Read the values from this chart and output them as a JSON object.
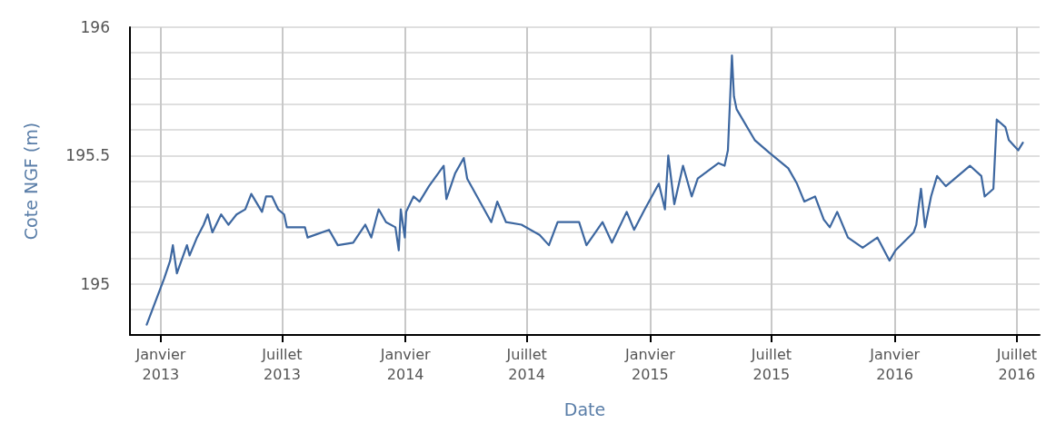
{
  "chart_data": {
    "type": "line",
    "xlabel": "Date",
    "ylabel": "Cote NGF (m)",
    "xlim": [
      "2012-11-16",
      "2016-08-04"
    ],
    "xticks": [
      {
        "value": "2013-01-01",
        "label": "Janvier\n2013"
      },
      {
        "value": "2013-07-01",
        "label": "Juillet\n2013"
      },
      {
        "value": "2014-01-01",
        "label": "Janvier\n2014"
      },
      {
        "value": "2014-07-01",
        "label": "Juillet\n2014"
      },
      {
        "value": "2015-01-01",
        "label": "Janvier\n2015"
      },
      {
        "value": "2015-07-01",
        "label": "Juillet\n2015"
      },
      {
        "value": "2016-01-01",
        "label": "Janvier\n2016"
      },
      {
        "value": "2016-07-01",
        "label": "Juillet\n2016"
      }
    ],
    "ylim": [
      194.8,
      196
    ],
    "yticks": [
      {
        "value": 194.8,
        "label": null
      },
      {
        "value": 194.9,
        "label": null
      },
      195,
      {
        "value": 195.1,
        "label": null
      },
      {
        "value": 195.2,
        "label": null
      },
      {
        "value": 195.3,
        "label": null
      },
      {
        "value": 195.4,
        "label": null
      },
      195.5,
      {
        "value": 195.6,
        "label": null
      },
      {
        "value": 195.7,
        "label": null
      },
      {
        "value": 195.8,
        "label": null
      },
      {
        "value": 195.9,
        "label": null
      },
      196
    ],
    "grid": true,
    "marker": "none",
    "line_style": "solid",
    "series": [
      {
        "color": "#3d67a0",
        "x": [
          "2012-12-11",
          "2013-01-06",
          "2013-01-15",
          "2013-01-19",
          "2013-01-25",
          "2013-02-09",
          "2013-02-13",
          "2013-02-24",
          "2013-03-06",
          "2013-03-12",
          "2013-03-19",
          "2013-04-01",
          "2013-04-12",
          "2013-04-24",
          "2013-05-07",
          "2013-05-16",
          "2013-06-01",
          "2013-06-07",
          "2013-06-16",
          "2013-06-25",
          "2013-07-04",
          "2013-07-08",
          "2013-08-04",
          "2013-08-08",
          "2013-09-09",
          "2013-09-22",
          "2013-10-15",
          "2013-11-02",
          "2013-11-11",
          "2013-11-22",
          "2013-12-03",
          "2013-12-17",
          "2013-12-22",
          "2013-12-25",
          "2013-12-31",
          "2014-01-02",
          "2014-01-13",
          "2014-01-22",
          "2014-02-05",
          "2014-02-27",
          "2014-03-03",
          "2014-03-16",
          "2014-03-29",
          "2014-04-03",
          "2014-05-09",
          "2014-05-18",
          "2014-05-31",
          "2014-06-23",
          "2014-07-20",
          "2014-08-03",
          "2014-08-16",
          "2014-09-17",
          "2014-09-28",
          "2014-10-22",
          "2014-11-05",
          "2014-11-27",
          "2014-12-08",
          "2014-12-24",
          "2015-01-14",
          "2015-01-23",
          "2015-01-28",
          "2015-02-06",
          "2015-02-19",
          "2015-03-04",
          "2015-03-13",
          "2015-04-13",
          "2015-04-22",
          "2015-04-27",
          "2015-05-03",
          "2015-05-06",
          "2015-05-10",
          "2015-06-06",
          "2015-06-28",
          "2015-07-12",
          "2015-07-26",
          "2015-08-08",
          "2015-08-19",
          "2015-09-04",
          "2015-09-17",
          "2015-09-26",
          "2015-10-07",
          "2015-10-23",
          "2015-11-14",
          "2015-12-06",
          "2015-12-24",
          "2016-01-02",
          "2016-01-29",
          "2016-02-02",
          "2016-02-09",
          "2016-02-15",
          "2016-02-24",
          "2016-03-04",
          "2016-03-17",
          "2016-04-04",
          "2016-04-22",
          "2016-05-09",
          "2016-05-14",
          "2016-05-27",
          "2016-06-01",
          "2016-06-14",
          "2016-06-19",
          "2016-07-03",
          "2016-07-10"
        ],
        "values": [
          194.84,
          195.02,
          195.09,
          195.15,
          195.04,
          195.15,
          195.11,
          195.18,
          195.23,
          195.27,
          195.2,
          195.27,
          195.23,
          195.27,
          195.29,
          195.35,
          195.28,
          195.34,
          195.34,
          195.29,
          195.27,
          195.22,
          195.22,
          195.18,
          195.21,
          195.15,
          195.16,
          195.23,
          195.18,
          195.29,
          195.24,
          195.22,
          195.13,
          195.29,
          195.18,
          195.28,
          195.34,
          195.32,
          195.38,
          195.46,
          195.33,
          195.43,
          195.49,
          195.41,
          195.24,
          195.32,
          195.24,
          195.23,
          195.19,
          195.15,
          195.24,
          195.24,
          195.15,
          195.24,
          195.16,
          195.28,
          195.21,
          195.29,
          195.39,
          195.29,
          195.5,
          195.31,
          195.46,
          195.34,
          195.41,
          195.47,
          195.46,
          195.52,
          195.89,
          195.73,
          195.68,
          195.56,
          195.51,
          195.48,
          195.45,
          195.39,
          195.32,
          195.34,
          195.25,
          195.22,
          195.28,
          195.18,
          195.14,
          195.18,
          195.09,
          195.13,
          195.2,
          195.23,
          195.37,
          195.22,
          195.34,
          195.42,
          195.38,
          195.42,
          195.46,
          195.42,
          195.34,
          195.37,
          195.64,
          195.61,
          195.56,
          195.52,
          195.55
        ]
      }
    ]
  }
}
